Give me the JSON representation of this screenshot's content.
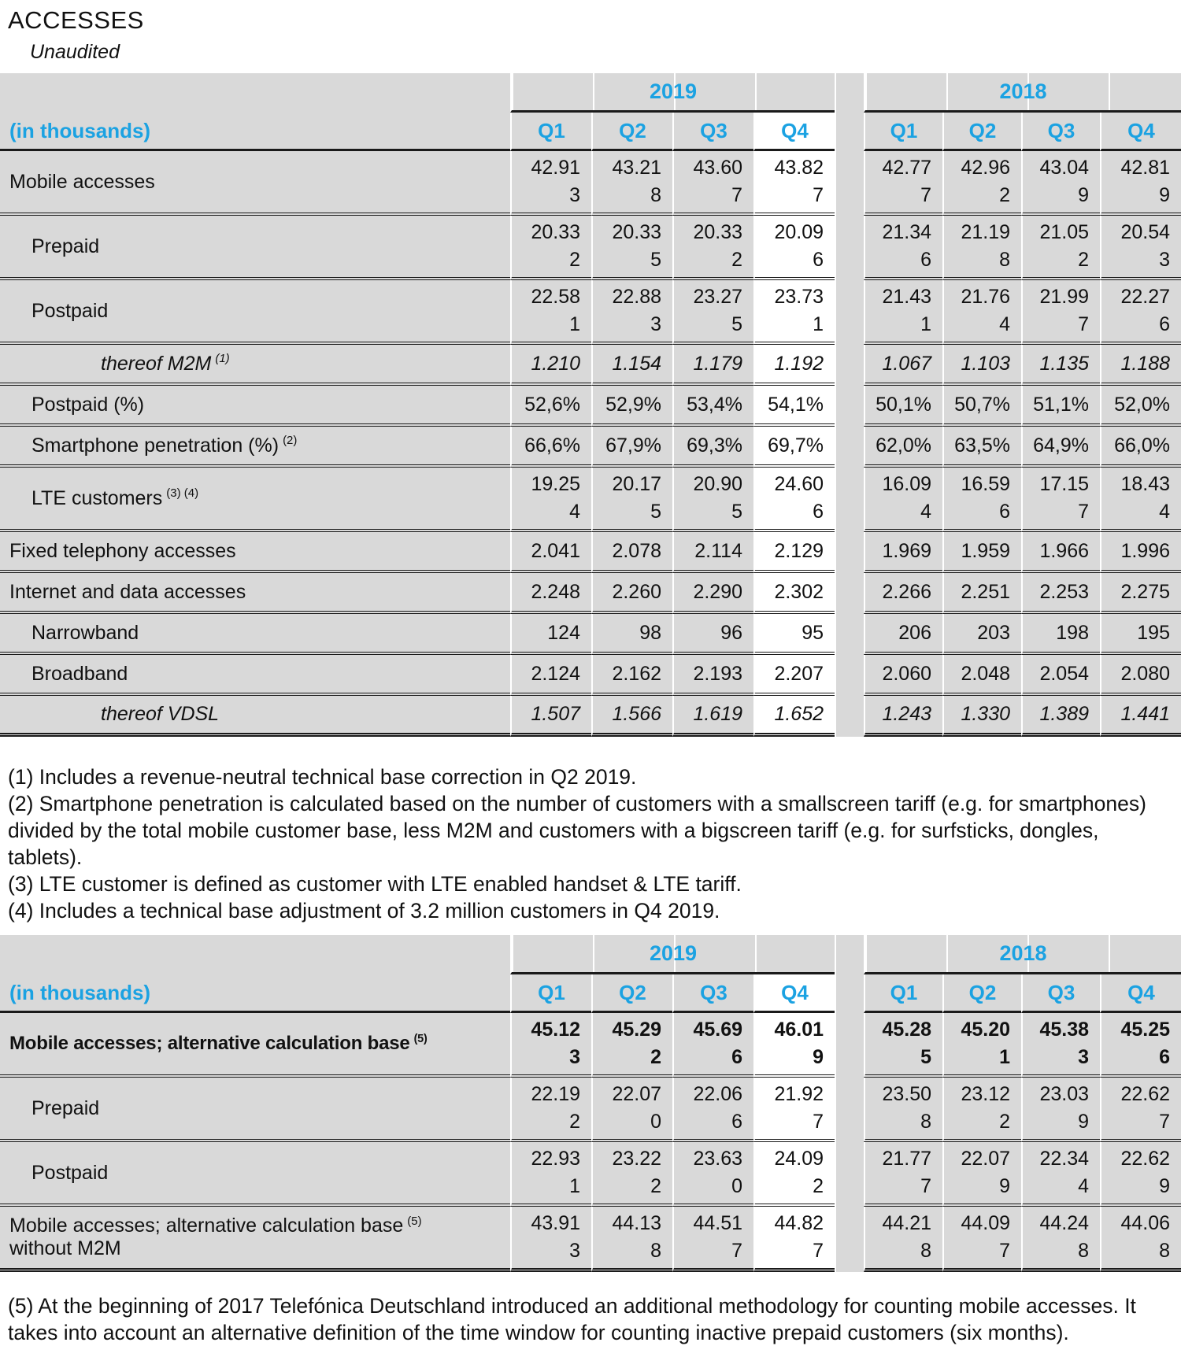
{
  "title": "ACCESSES",
  "subtitle": "Unaudited",
  "colors": {
    "accent": "#1BA2E2",
    "cell_bg": "#D9D9D9",
    "highlight_bg": "#FFFFFF",
    "rule": "#1A1A1A",
    "text": "#111111"
  },
  "table1": {
    "unit_label": "(in thousands)",
    "year_groups": [
      "2019",
      "2018"
    ],
    "quarters": [
      "Q1",
      "Q2",
      "Q3",
      "Q4"
    ],
    "highlighted_column": "2019 Q4",
    "rows": [
      {
        "label": "Mobile accesses",
        "indent": 0,
        "values": [
          "42.913",
          "43.218",
          "43.607",
          "43.827",
          "42.777",
          "42.962",
          "43.049",
          "42.819"
        ]
      },
      {
        "label": "Prepaid",
        "indent": 1,
        "values": [
          "20.332",
          "20.335",
          "20.332",
          "20.096",
          "21.346",
          "21.198",
          "21.052",
          "20.543"
        ]
      },
      {
        "label": "Postpaid",
        "indent": 1,
        "values": [
          "22.581",
          "22.883",
          "23.275",
          "23.731",
          "21.431",
          "21.764",
          "21.997",
          "22.276"
        ]
      },
      {
        "label": "thereof M2M",
        "sup": "(1)",
        "indent": 2,
        "italic": true,
        "values": [
          "1.210",
          "1.154",
          "1.179",
          "1.192",
          "1.067",
          "1.103",
          "1.135",
          "1.188"
        ]
      },
      {
        "label": "Postpaid (%)",
        "indent": 1,
        "values": [
          "52,6%",
          "52,9%",
          "53,4%",
          "54,1%",
          "50,1%",
          "50,7%",
          "51,1%",
          "52,0%"
        ]
      },
      {
        "label": "Smartphone penetration (%)",
        "sup": "(2)",
        "indent": 1,
        "values": [
          "66,6%",
          "67,9%",
          "69,3%",
          "69,7%",
          "62,0%",
          "63,5%",
          "64,9%",
          "66,0%"
        ]
      },
      {
        "label": "LTE customers",
        "sup": "(3) (4)",
        "indent": 1,
        "values": [
          "19.254",
          "20.175",
          "20.905",
          "24.606",
          "16.094",
          "16.596",
          "17.157",
          "18.434"
        ]
      },
      {
        "label": "Fixed telephony accesses",
        "indent": 0,
        "values": [
          "2.041",
          "2.078",
          "2.114",
          "2.129",
          "1.969",
          "1.959",
          "1.966",
          "1.996"
        ]
      },
      {
        "label": "Internet and data accesses",
        "indent": 0,
        "values": [
          "2.248",
          "2.260",
          "2.290",
          "2.302",
          "2.266",
          "2.251",
          "2.253",
          "2.275"
        ]
      },
      {
        "label": "Narrowband",
        "indent": 1,
        "values": [
          "124",
          "98",
          "96",
          "95",
          "206",
          "203",
          "198",
          "195"
        ]
      },
      {
        "label": "Broadband",
        "indent": 1,
        "values": [
          "2.124",
          "2.162",
          "2.193",
          "2.207",
          "2.060",
          "2.048",
          "2.054",
          "2.080"
        ]
      },
      {
        "label": "thereof VDSL",
        "indent": 2,
        "italic": true,
        "values": [
          "1.507",
          "1.566",
          "1.619",
          "1.652",
          "1.243",
          "1.330",
          "1.389",
          "1.441"
        ]
      }
    ]
  },
  "footnotes_table1": [
    "(1) Includes a revenue-neutral technical base correction in Q2 2019.",
    "(2) Smartphone penetration is calculated based on the number of customers with a smallscreen tariff (e.g. for smartphones) divided by the total mobile customer base, less M2M and customers with a bigscreen tariff (e.g. for surfsticks, dongles, tablets).",
    "(3) LTE customer is defined as customer with LTE enabled handset & LTE tariff.",
    "(4) Includes a technical base adjustment of 3.2 million customers in Q4 2019."
  ],
  "table2": {
    "unit_label": "(in thousands)",
    "year_groups": [
      "2019",
      "2018"
    ],
    "quarters": [
      "Q1",
      "Q2",
      "Q3",
      "Q4"
    ],
    "highlighted_column": "2019 Q4",
    "rows": [
      {
        "label": "Mobile accesses; alternative calculation base",
        "sup": "(5)",
        "indent": 0,
        "bold": true,
        "values": [
          "45.123",
          "45.292",
          "45.696",
          "46.019",
          "45.285",
          "45.201",
          "45.383",
          "45.256"
        ]
      },
      {
        "label": "Prepaid",
        "indent": 1,
        "values": [
          "22.192",
          "22.070",
          "22.066",
          "21.927",
          "23.508",
          "23.122",
          "23.039",
          "22.627"
        ]
      },
      {
        "label": "Postpaid",
        "indent": 1,
        "values": [
          "22.931",
          "23.222",
          "23.630",
          "24.092",
          "21.777",
          "22.079",
          "22.344",
          "22.629"
        ]
      },
      {
        "label": "Mobile accesses; alternative calculation base",
        "sup": "(5)",
        "label2": "without M2M",
        "indent": 0,
        "values": [
          "43.913",
          "44.138",
          "44.517",
          "44.827",
          "44.218",
          "44.097",
          "44.248",
          "44.068"
        ]
      }
    ]
  },
  "footnotes_table2": [
    "(5) At the beginning of 2017 Telefónica Deutschland introduced an additional methodology for counting mobile accesses. It takes into account an alternative definition of the time window for counting inactive prepaid customers (six months)."
  ]
}
